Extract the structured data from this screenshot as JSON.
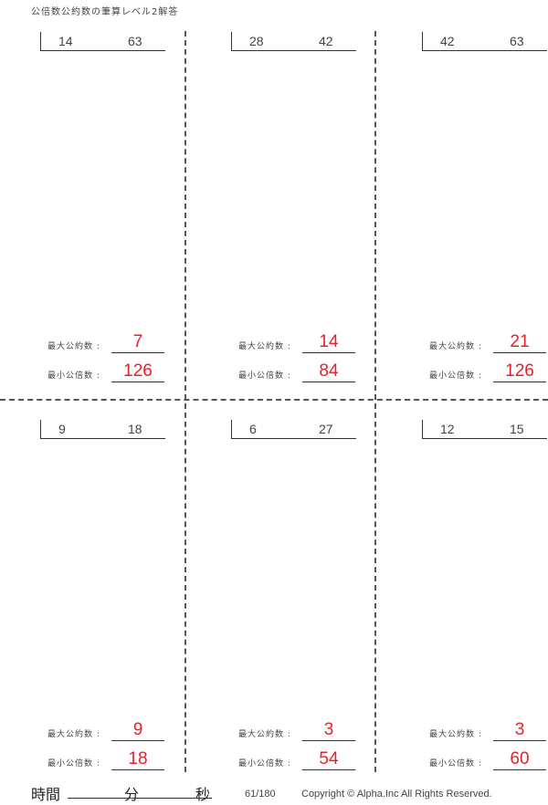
{
  "title": "公倍数公約数の筆算レベル2解答",
  "labels": {
    "gcd": "最大公約数 :",
    "lcm": "最小公倍数 :"
  },
  "problems": [
    {
      "a": "14",
      "b": "63",
      "gcd": "7",
      "lcm": "126"
    },
    {
      "a": "28",
      "b": "42",
      "gcd": "14",
      "lcm": "84"
    },
    {
      "a": "42",
      "b": "63",
      "gcd": "21",
      "lcm": "126"
    },
    {
      "a": "9",
      "b": "18",
      "gcd": "9",
      "lcm": "18"
    },
    {
      "a": "6",
      "b": "27",
      "gcd": "3",
      "lcm": "54"
    },
    {
      "a": "12",
      "b": "15",
      "gcd": "3",
      "lcm": "60"
    }
  ],
  "footer": {
    "time_label": "時間",
    "minutes": "分",
    "seconds": "秒",
    "page": "61/180",
    "copyright": "Copyright ©  Alpha.Inc All Rights Reserved."
  },
  "colors": {
    "answer": "#e8202a"
  }
}
